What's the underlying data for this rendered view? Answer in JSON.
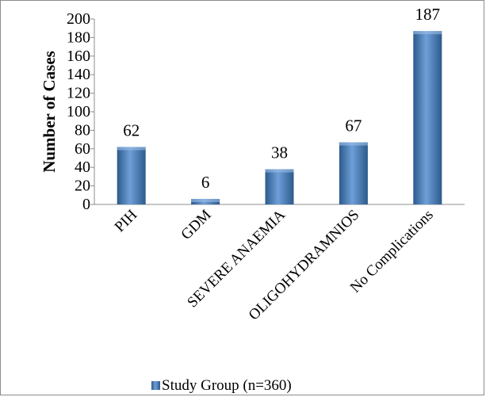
{
  "chart_data": {
    "type": "bar",
    "title": "",
    "xlabel": "",
    "ylabel": "Number of Cases",
    "ylim": [
      0,
      200
    ],
    "yticks": [
      0,
      20,
      40,
      60,
      80,
      100,
      120,
      140,
      160,
      180,
      200
    ],
    "categories": [
      "PIH",
      "GDM",
      "SEVERE ANAEMIA",
      "OLIGOHYDRAMNIOS",
      "No Complications"
    ],
    "series": [
      {
        "name": "Study Group (n=360)",
        "values": [
          62,
          6,
          38,
          67,
          187
        ]
      }
    ],
    "data_labels": [
      "62",
      "6",
      "38",
      "67",
      "187"
    ],
    "legend": "bottom",
    "grid": false,
    "colors": {
      "bar": "#4f81bd",
      "bar_dark": "#2c5a8c",
      "bar_light": "#6f9fd8"
    }
  }
}
